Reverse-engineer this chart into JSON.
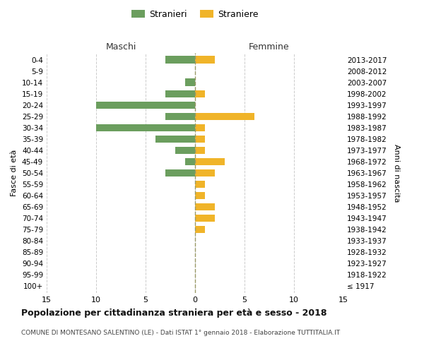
{
  "age_groups": [
    "100+",
    "95-99",
    "90-94",
    "85-89",
    "80-84",
    "75-79",
    "70-74",
    "65-69",
    "60-64",
    "55-59",
    "50-54",
    "45-49",
    "40-44",
    "35-39",
    "30-34",
    "25-29",
    "20-24",
    "15-19",
    "10-14",
    "5-9",
    "0-4"
  ],
  "birth_years": [
    "≤ 1917",
    "1918-1922",
    "1923-1927",
    "1928-1932",
    "1933-1937",
    "1938-1942",
    "1943-1947",
    "1948-1952",
    "1953-1957",
    "1958-1962",
    "1963-1967",
    "1968-1972",
    "1973-1977",
    "1978-1982",
    "1983-1987",
    "1988-1992",
    "1993-1997",
    "1998-2002",
    "2003-2007",
    "2008-2012",
    "2013-2017"
  ],
  "males": [
    0,
    0,
    0,
    0,
    0,
    0,
    0,
    0,
    0,
    0,
    3,
    1,
    2,
    4,
    10,
    3,
    10,
    3,
    1,
    0,
    3
  ],
  "females": [
    0,
    0,
    0,
    0,
    0,
    1,
    2,
    2,
    1,
    1,
    2,
    3,
    1,
    1,
    1,
    6,
    0,
    1,
    0,
    0,
    2
  ],
  "male_color": "#6b9e5e",
  "female_color": "#f0b429",
  "title": "Popolazione per cittadinanza straniera per età e sesso - 2018",
  "subtitle": "COMUNE DI MONTESANO SALENTINO (LE) - Dati ISTAT 1° gennaio 2018 - Elaborazione TUTTITALIA.IT",
  "xlabel_left": "Maschi",
  "xlabel_right": "Femmine",
  "ylabel_left": "Fasce di età",
  "ylabel_right": "Anni di nascita",
  "legend_male": "Stranieri",
  "legend_female": "Straniere",
  "xlim": 15,
  "background_color": "#ffffff",
  "grid_color": "#cccccc",
  "dashed_line_color": "#999966"
}
